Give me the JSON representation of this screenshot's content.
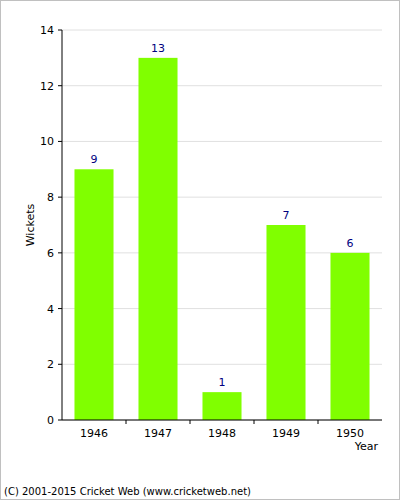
{
  "chart_data": {
    "type": "bar",
    "x_label": "Year",
    "y_label": "Wickets",
    "categories": [
      "1946",
      "1947",
      "1948",
      "1949",
      "1950"
    ],
    "values": [
      9,
      13,
      1,
      7,
      6
    ],
    "color": "#80ff00",
    "ylim": [
      0,
      14
    ],
    "yticks": [
      0,
      2,
      4,
      6,
      8,
      10,
      12,
      14
    ],
    "grid": true,
    "data_labels": true,
    "annotations": [
      "(C) 2001-2015 Cricket Web (www.cricketweb.net)"
    ]
  }
}
